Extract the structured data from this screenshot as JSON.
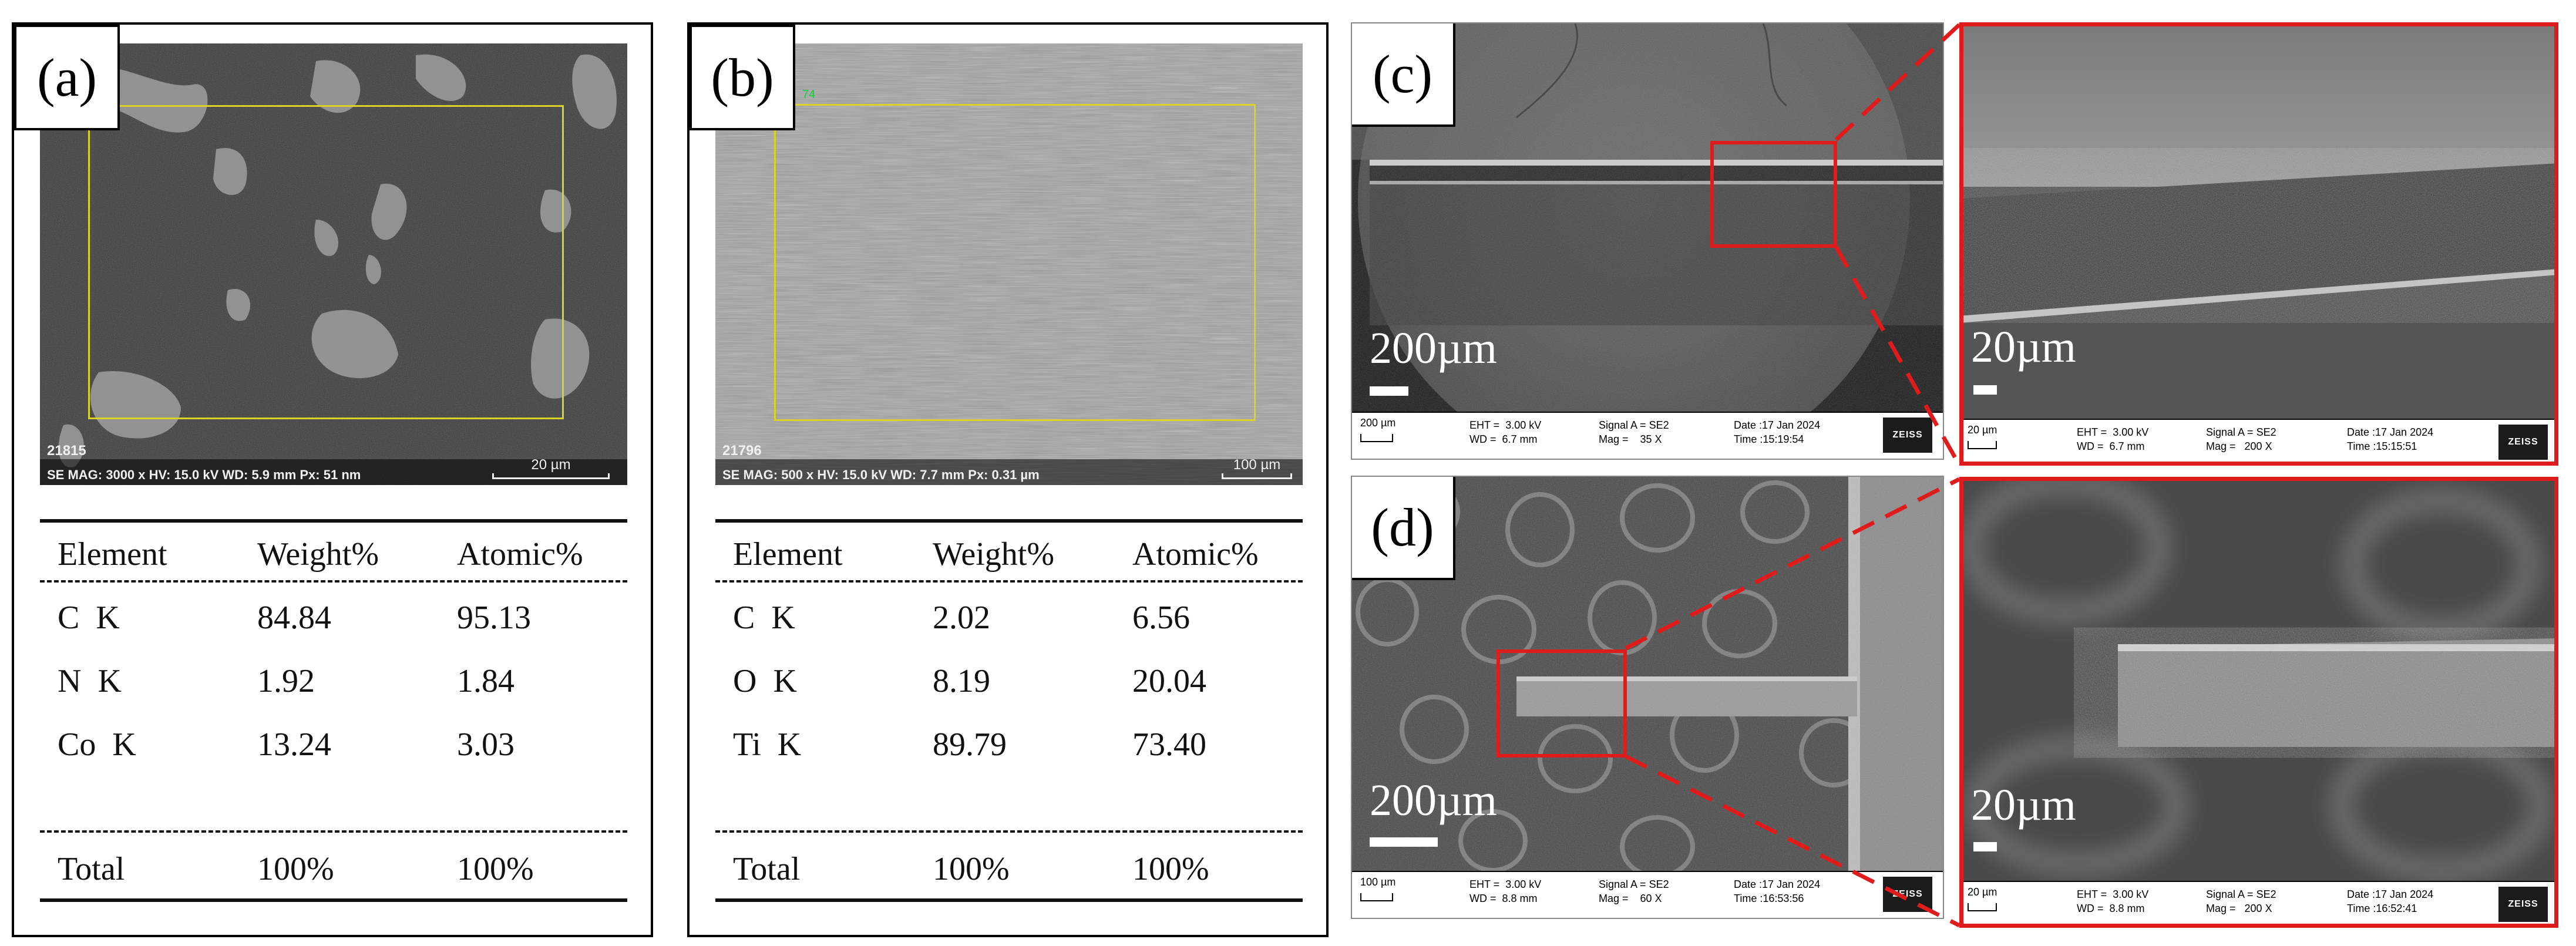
{
  "panels": {
    "a": {
      "label": "(a)",
      "sem": {
        "id": "21815",
        "meta": "SE  MAG: 3000 x   HV: 15.0 kV   WD: 5.9 mm   Px: 51 nm",
        "scale": "20 µm"
      },
      "table": {
        "headers": [
          "Element",
          "Weight%",
          "Atomic%"
        ],
        "rows": [
          [
            "C  K",
            "84.84",
            "95.13"
          ],
          [
            "N  K",
            "1.92",
            "1.84"
          ],
          [
            "Co  K",
            "13.24",
            "3.03"
          ]
        ],
        "total": [
          "Total",
          "100%",
          "100%"
        ]
      }
    },
    "b": {
      "label": "(b)",
      "sem": {
        "id": "21796",
        "meta": "SE  MAG: 500 x   HV: 15.0 kV   WD: 7.7 mm   Px: 0.31 µm",
        "scale": "100 µm",
        "roi_tag": "74"
      },
      "table": {
        "headers": [
          "Element",
          "Weight%",
          "Atomic%"
        ],
        "rows": [
          [
            "C  K",
            "2.02",
            "6.56"
          ],
          [
            "O  K",
            "8.19",
            "20.04"
          ],
          [
            "Ti  K",
            "89.79",
            "73.40"
          ]
        ],
        "total": [
          "Total",
          "100%",
          "100%"
        ]
      }
    },
    "c": {
      "label": "(c)",
      "left": {
        "big_scale": "200µm",
        "strip": {
          "scale": "200 µm",
          "eht": "EHT =  3.00 kV",
          "wd": "WD =  6.7 mm",
          "signal": "Signal A = SE2",
          "mag": "Mag =    35 X",
          "date": "Date :17 Jan 2024",
          "time": "Time :15:19:54",
          "logo": "ZEISS"
        }
      },
      "right": {
        "big_scale": "20µm",
        "strip": {
          "scale": "20 µm",
          "eht": "EHT =  3.00 kV",
          "wd": "WD =  6.7 mm",
          "signal": "Signal A = SE2",
          "mag": "Mag =   200 X",
          "date": "Date :17 Jan 2024",
          "time": "Time :15:15:51",
          "logo": "ZEISS"
        }
      }
    },
    "d": {
      "label": "(d)",
      "left": {
        "big_scale": "200µm",
        "strip": {
          "scale": "100 µm",
          "eht": "EHT =  3.00 kV",
          "wd": "WD =  8.8 mm",
          "signal": "Signal A = SE2",
          "mag": "Mag =    60 X",
          "date": "Date :17 Jan 2024",
          "time": "Time :16:53:56",
          "logo": "ZEISS"
        }
      },
      "right": {
        "big_scale": "20µm",
        "strip": {
          "scale": "20 µm",
          "eht": "EHT =  3.00 kV",
          "wd": "WD =  8.8 mm",
          "signal": "Signal A = SE2",
          "mag": "Mag =   200 X",
          "date": "Date :17 Jan 2024",
          "time": "Time :16:52:41",
          "logo": "ZEISS"
        }
      }
    }
  },
  "colors": {
    "highlight_red": "#e01b1b",
    "roi_yellow": "#d9d327"
  }
}
